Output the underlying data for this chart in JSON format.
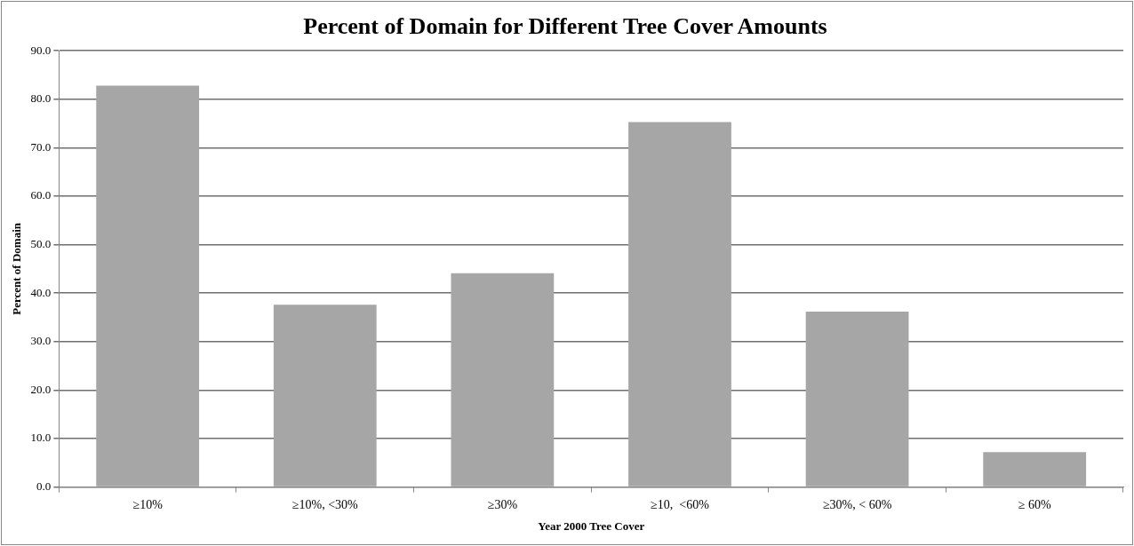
{
  "chart_data": {
    "type": "bar",
    "title": "Percent of Domain for Different Tree Cover Amounts",
    "xlabel": "Year 2000 Tree Cover",
    "ylabel": "Percent of Domain",
    "categories": [
      "≥10%",
      "≥10%, <30%",
      "≥30%",
      "≥10,  <60%",
      "≥30%, < 60%",
      "≥ 60%"
    ],
    "values": [
      82.8,
      37.6,
      44.1,
      75.3,
      36.2,
      7.2
    ],
    "color": "#a6a6a6",
    "ylim": [
      0,
      90
    ],
    "yticks": [
      {
        "value": 0,
        "label": "0.0"
      },
      {
        "value": 10,
        "label": "10.0"
      },
      {
        "value": 20,
        "label": "20.0"
      },
      {
        "value": 30,
        "label": "30.0"
      },
      {
        "value": 40,
        "label": "40.0"
      },
      {
        "value": 50,
        "label": "50.0"
      },
      {
        "value": 60,
        "label": "60.0"
      },
      {
        "value": 70,
        "label": "70.0"
      },
      {
        "value": 80,
        "label": "80.0"
      },
      {
        "value": 90,
        "label": "90.0"
      }
    ],
    "grid": "y",
    "legend": false
  }
}
